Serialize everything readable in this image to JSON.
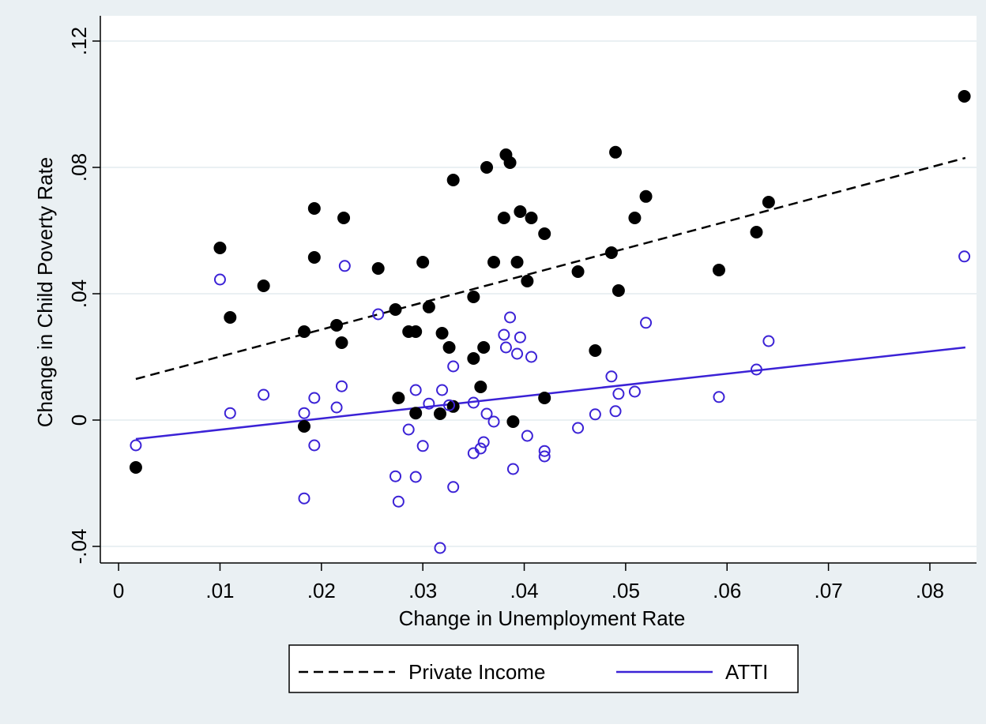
{
  "chart_data": {
    "type": "scatter",
    "xlabel": "Change in Unemployment Rate",
    "ylabel": "Change in Child Poverty Rate",
    "xlim": [
      -0.0018,
      0.0846
    ],
    "ylim": [
      -0.04525,
      0.128
    ],
    "xticks": [
      0,
      {
        "value": 0.01,
        "label": ".01"
      },
      {
        "value": 0.02,
        "label": ".02"
      },
      {
        "value": 0.03,
        "label": ".03"
      },
      {
        "value": 0.04,
        "label": ".04"
      },
      {
        "value": 0.05,
        "label": ".05"
      },
      {
        "value": 0.06,
        "label": ".06"
      },
      {
        "value": 0.07,
        "label": ".07"
      },
      {
        "value": 0.08,
        "label": ".08"
      }
    ],
    "yticks": [
      {
        "value": -0.04,
        "label": "-.04"
      },
      0,
      {
        "value": 0.04,
        "label": ".04"
      },
      {
        "value": 0.08,
        "label": ".08"
      },
      {
        "value": 0.12,
        "label": ".12"
      }
    ],
    "grid": true,
    "legend": "bottom",
    "series": [
      {
        "marker": "filled",
        "color": "#000000",
        "x": [
          0.0017,
          0.01,
          0.011,
          0.0143,
          0.0183,
          0.0183,
          0.0193,
          0.0193,
          0.0215,
          0.022,
          0.0222,
          0.0256,
          0.0273,
          0.0276,
          0.0286,
          0.0293,
          0.0293,
          0.03,
          0.0306,
          0.0317,
          0.0319,
          0.0326,
          0.033,
          0.033,
          0.035,
          0.035,
          0.0357,
          0.036,
          0.0363,
          0.037,
          0.038,
          0.0382,
          0.0386,
          0.0389,
          0.0393,
          0.0396,
          0.0403,
          0.0407,
          0.042,
          0.042,
          0.0453,
          0.047,
          0.0486,
          0.049,
          0.0493,
          0.0509,
          0.052,
          0.0592,
          0.0629,
          0.0641,
          0.0834
        ],
        "values": [
          -0.015,
          0.0545,
          0.0325,
          0.0425,
          0.028,
          -0.002,
          0.067,
          0.0515,
          0.03,
          0.0245,
          0.064,
          0.048,
          0.035,
          0.007,
          0.028,
          0.028,
          0.0022,
          0.05,
          0.0358,
          0.002,
          0.0275,
          0.023,
          0.076,
          0.0043,
          0.0195,
          0.039,
          0.0105,
          0.023,
          0.08,
          0.05,
          0.064,
          0.084,
          0.0815,
          -0.0005,
          0.05,
          0.066,
          0.044,
          0.064,
          0.059,
          0.007,
          0.047,
          0.022,
          0.053,
          0.0848,
          0.041,
          0.064,
          0.0708,
          0.0475,
          0.0595,
          0.069,
          0.1025
        ]
      },
      {
        "marker": "hollow",
        "color": "#3b22d6",
        "x": [
          0.0017,
          0.01,
          0.011,
          0.0143,
          0.0183,
          0.0183,
          0.0193,
          0.0193,
          0.0215,
          0.022,
          0.0223,
          0.0256,
          0.0273,
          0.0276,
          0.0286,
          0.0293,
          0.0293,
          0.03,
          0.0306,
          0.0317,
          0.0319,
          0.0326,
          0.033,
          0.033,
          0.035,
          0.035,
          0.0357,
          0.036,
          0.0363,
          0.037,
          0.038,
          0.0382,
          0.0386,
          0.0389,
          0.0393,
          0.0396,
          0.0403,
          0.0407,
          0.042,
          0.042,
          0.0453,
          0.047,
          0.0486,
          0.049,
          0.0493,
          0.0509,
          0.052,
          0.0592,
          0.0629,
          0.0641,
          0.0834
        ],
        "values": [
          -0.008,
          0.0445,
          0.0022,
          0.008,
          0.0022,
          -0.0248,
          0.007,
          -0.008,
          0.004,
          0.0107,
          0.0488,
          0.0335,
          -0.0178,
          -0.0258,
          -0.003,
          0.0095,
          -0.018,
          -0.0082,
          0.0052,
          -0.0405,
          0.0095,
          0.0047,
          -0.0212,
          0.017,
          -0.0105,
          0.0055,
          -0.009,
          -0.007,
          0.002,
          -0.0005,
          0.027,
          0.023,
          0.0325,
          -0.0155,
          0.021,
          0.0262,
          -0.005,
          0.02,
          -0.0098,
          -0.0115,
          -0.0025,
          0.0018,
          0.0138,
          0.0028,
          0.0083,
          0.009,
          0.0308,
          0.0073,
          0.016,
          0.025,
          0.0518
        ]
      }
    ],
    "fits": [
      {
        "name": "Private Income",
        "color": "#000000",
        "dash": "dashed",
        "x": [
          0.0017,
          0.0835
        ],
        "values": [
          0.013,
          0.083
        ]
      },
      {
        "name": "ATTI",
        "color": "#3b22d6",
        "dash": "solid",
        "x": [
          0.0017,
          0.0835
        ],
        "values": [
          -0.006,
          0.023
        ]
      }
    ]
  }
}
